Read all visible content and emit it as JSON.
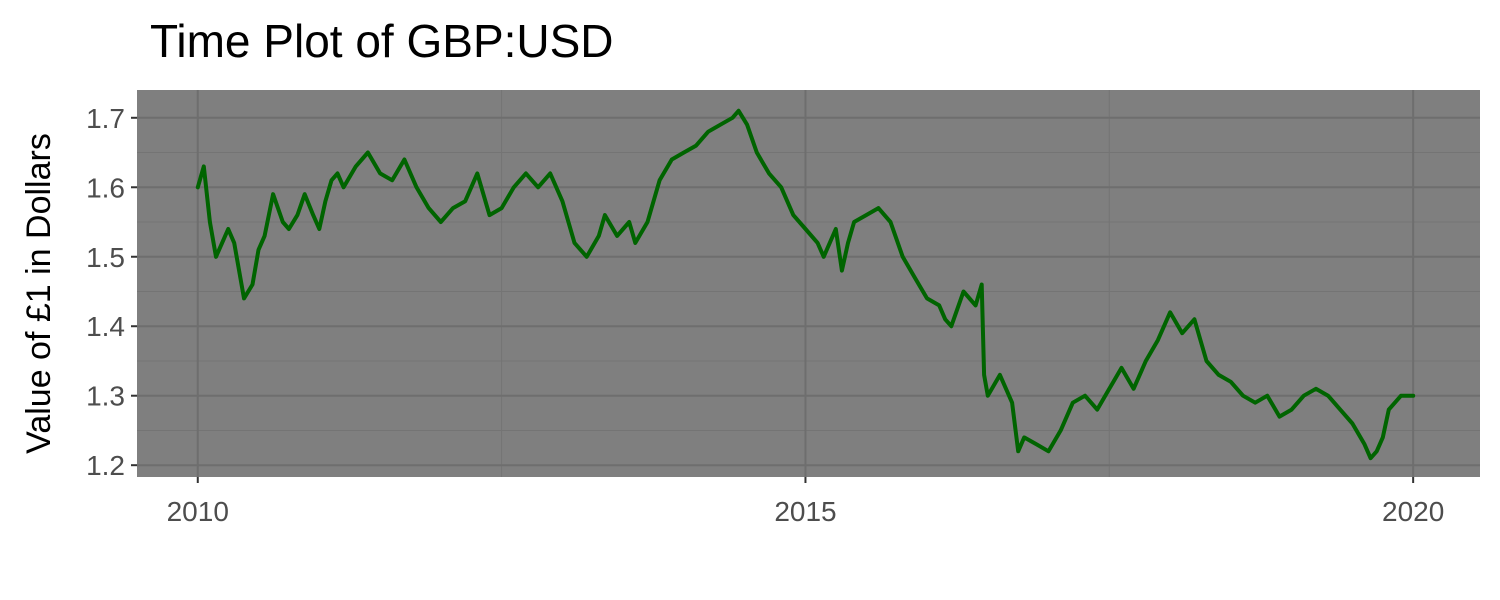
{
  "chart_data": {
    "type": "line",
    "title": "Time Plot of GBP:USD",
    "xlabel": "",
    "ylabel": "Value of £1 in Dollars",
    "xlim": [
      2009.5,
      2020.55
    ],
    "ylim": [
      1.183,
      1.74
    ],
    "x_ticks": [
      2010,
      2015,
      2020
    ],
    "x_tick_labels": [
      "2010",
      "2015",
      "2020"
    ],
    "y_ticks": [
      1.2,
      1.3,
      1.4,
      1.5,
      1.6,
      1.7
    ],
    "y_tick_labels": [
      "1.2",
      "1.3",
      "1.4",
      "1.5",
      "1.6",
      "1.7"
    ],
    "grid": true,
    "legend": "none",
    "colors": {
      "panel_background": "#7f7f7f",
      "grid_major": "#6e6e6e",
      "grid_minor": "#747474",
      "line": "#006400"
    },
    "series": [
      {
        "x": [
          2010.0,
          2010.05,
          2010.1,
          2010.15,
          2010.2,
          2010.25,
          2010.3,
          2010.38,
          2010.45,
          2010.5,
          2010.55,
          2010.62,
          2010.7,
          2010.75,
          2010.82,
          2010.88,
          2010.95,
          2011.0,
          2011.05,
          2011.1,
          2011.15,
          2011.2,
          2011.3,
          2011.4,
          2011.5,
          2011.6,
          2011.7,
          2011.8,
          2011.9,
          2012.0,
          2012.05,
          2012.1,
          2012.2,
          2012.3,
          2012.4,
          2012.5,
          2012.6,
          2012.7,
          2012.8,
          2012.9,
          2013.0,
          2013.1,
          2013.2,
          2013.3,
          2013.35,
          2013.45,
          2013.55,
          2013.6,
          2013.7,
          2013.8,
          2013.9,
          2014.0,
          2014.1,
          2014.2,
          2014.3,
          2014.4,
          2014.45,
          2014.52,
          2014.6,
          2014.7,
          2014.8,
          2014.9,
          2015.0,
          2015.1,
          2015.15,
          2015.25,
          2015.3,
          2015.35,
          2015.4,
          2015.5,
          2015.6,
          2015.7,
          2015.8,
          2015.9,
          2016.0,
          2016.1,
          2016.15,
          2016.2,
          2016.3,
          2016.4,
          2016.45,
          2016.47,
          2016.5,
          2016.6,
          2016.7,
          2016.75,
          2016.8,
          2016.9,
          2017.0,
          2017.1,
          2017.2,
          2017.3,
          2017.4,
          2017.5,
          2017.6,
          2017.7,
          2017.8,
          2017.9,
          2018.0,
          2018.1,
          2018.2,
          2018.3,
          2018.4,
          2018.5,
          2018.6,
          2018.7,
          2018.8,
          2018.9,
          2019.0,
          2019.1,
          2019.2,
          2019.3,
          2019.4,
          2019.5,
          2019.6,
          2019.65,
          2019.7,
          2019.75,
          2019.8,
          2019.9,
          2020.0
        ],
        "y": [
          1.6,
          1.63,
          1.55,
          1.5,
          1.52,
          1.54,
          1.52,
          1.44,
          1.46,
          1.51,
          1.53,
          1.59,
          1.55,
          1.54,
          1.56,
          1.59,
          1.56,
          1.54,
          1.58,
          1.61,
          1.62,
          1.6,
          1.63,
          1.65,
          1.62,
          1.61,
          1.64,
          1.6,
          1.57,
          1.55,
          1.56,
          1.57,
          1.58,
          1.62,
          1.56,
          1.57,
          1.6,
          1.62,
          1.6,
          1.62,
          1.58,
          1.52,
          1.5,
          1.53,
          1.56,
          1.53,
          1.55,
          1.52,
          1.55,
          1.61,
          1.64,
          1.65,
          1.66,
          1.68,
          1.69,
          1.7,
          1.71,
          1.69,
          1.65,
          1.62,
          1.6,
          1.56,
          1.54,
          1.52,
          1.5,
          1.54,
          1.48,
          1.52,
          1.55,
          1.56,
          1.57,
          1.55,
          1.5,
          1.47,
          1.44,
          1.43,
          1.41,
          1.4,
          1.45,
          1.43,
          1.46,
          1.33,
          1.3,
          1.33,
          1.29,
          1.22,
          1.24,
          1.23,
          1.22,
          1.25,
          1.29,
          1.3,
          1.28,
          1.31,
          1.34,
          1.31,
          1.35,
          1.38,
          1.42,
          1.39,
          1.41,
          1.35,
          1.33,
          1.32,
          1.3,
          1.29,
          1.3,
          1.27,
          1.28,
          1.3,
          1.31,
          1.3,
          1.28,
          1.26,
          1.23,
          1.21,
          1.22,
          1.24,
          1.28,
          1.3,
          1.3
        ]
      }
    ]
  }
}
